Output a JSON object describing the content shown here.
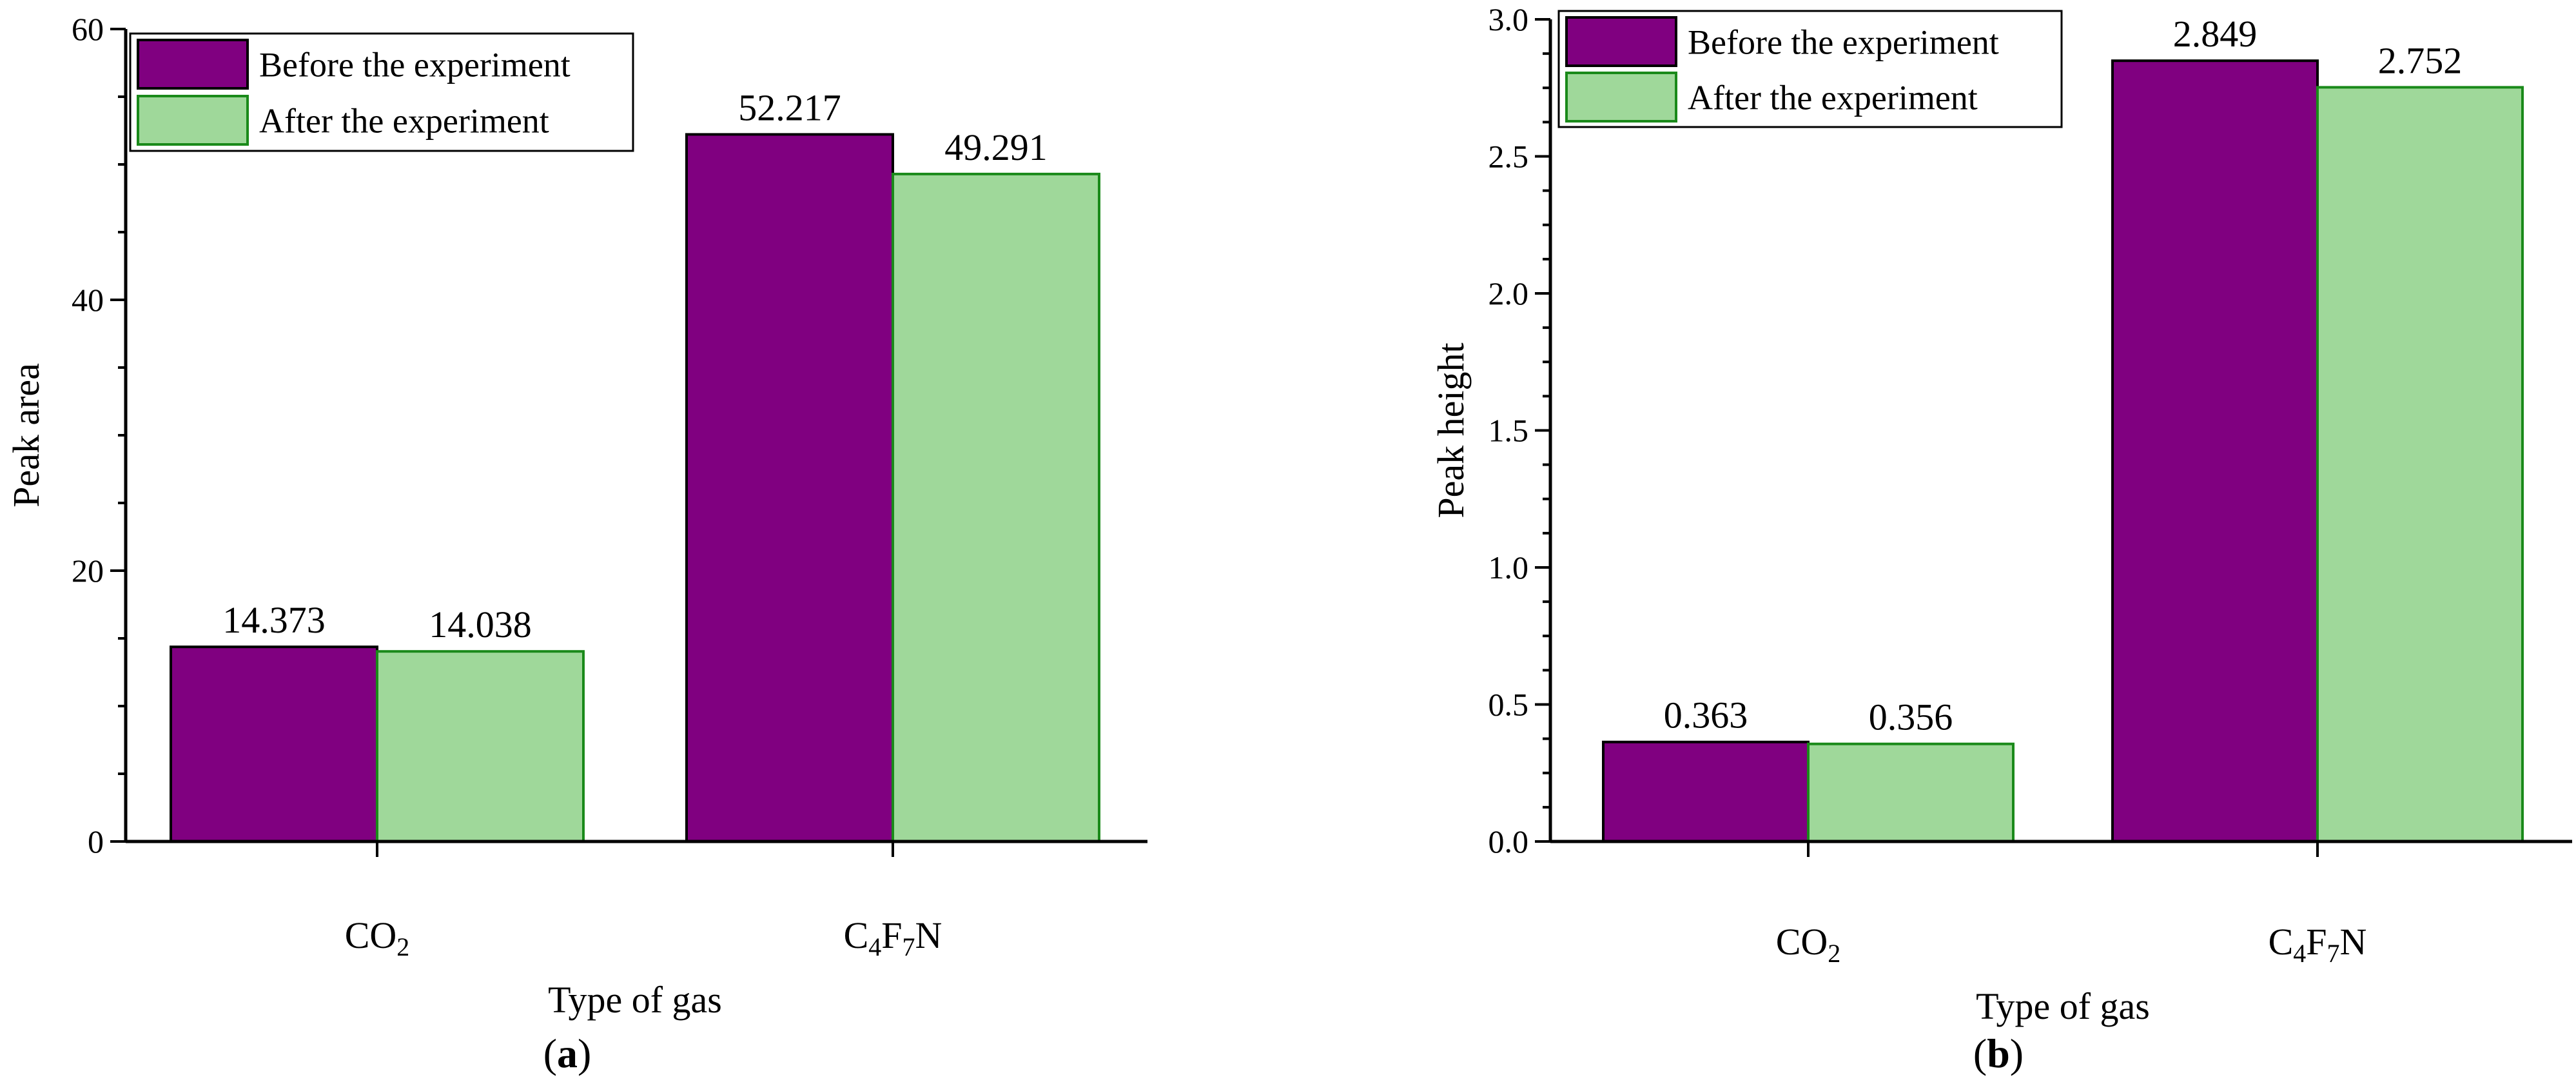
{
  "figure": {
    "panels": [
      "(a)",
      "(b)"
    ]
  },
  "colors": {
    "before_fill": "#800080",
    "after_fill": "#9fd89a",
    "after_stroke": "#1a8a1a",
    "axis": "#000000"
  },
  "chart_data": [
    {
      "type": "bar",
      "panel_label": "(a)",
      "categories": [
        "CO2",
        "C4F7N"
      ],
      "category_text": [
        {
          "parts": [
            [
              "CO",
              ""
            ],
            [
              "2",
              "sub"
            ]
          ]
        },
        {
          "parts": [
            [
              "C",
              ""
            ],
            [
              "4",
              "sub"
            ],
            [
              "F",
              ""
            ],
            [
              "7",
              "sub"
            ],
            [
              "N",
              ""
            ]
          ]
        }
      ],
      "series": [
        {
          "name": "Before the experiment",
          "values": [
            14.373,
            52.217
          ],
          "labels": [
            "14.373",
            "52.217"
          ]
        },
        {
          "name": "After the experiment",
          "values": [
            14.038,
            49.291
          ],
          "labels": [
            "14.038",
            "49.291"
          ]
        }
      ],
      "xlabel": "Type of gas",
      "ylabel": "Peak area",
      "ylim": [
        0,
        60
      ],
      "yticks": [
        0,
        20,
        40,
        60
      ],
      "ytick_labels": [
        "0",
        "20",
        "40",
        "60"
      ],
      "yminor_step": 5,
      "legend_position": "top-left",
      "grid": false
    },
    {
      "type": "bar",
      "panel_label": "(b)",
      "categories": [
        "CO2",
        "C4F7N"
      ],
      "category_text": [
        {
          "parts": [
            [
              "CO",
              ""
            ],
            [
              "2",
              "sub"
            ]
          ]
        },
        {
          "parts": [
            [
              "C",
              ""
            ],
            [
              "4",
              "sub"
            ],
            [
              "F",
              ""
            ],
            [
              "7",
              "sub"
            ],
            [
              "N",
              ""
            ]
          ]
        }
      ],
      "series": [
        {
          "name": "Before the experiment",
          "values": [
            0.363,
            2.849
          ],
          "labels": [
            "0.363",
            "2.849"
          ]
        },
        {
          "name": "After the experiment",
          "values": [
            0.356,
            2.752
          ],
          "labels": [
            "0.356",
            "2.752"
          ]
        }
      ],
      "xlabel": "Type of gas",
      "ylabel": "Peak height",
      "ylim": [
        0,
        3.0
      ],
      "yticks": [
        0,
        0.5,
        1.0,
        1.5,
        2.0,
        2.5,
        3.0
      ],
      "ytick_labels": [
        "0.0",
        "0.5",
        "1.0",
        "1.5",
        "2.0",
        "2.5",
        "3.0"
      ],
      "yminor_step": 0.125,
      "legend_position": "top-left",
      "grid": false
    }
  ]
}
